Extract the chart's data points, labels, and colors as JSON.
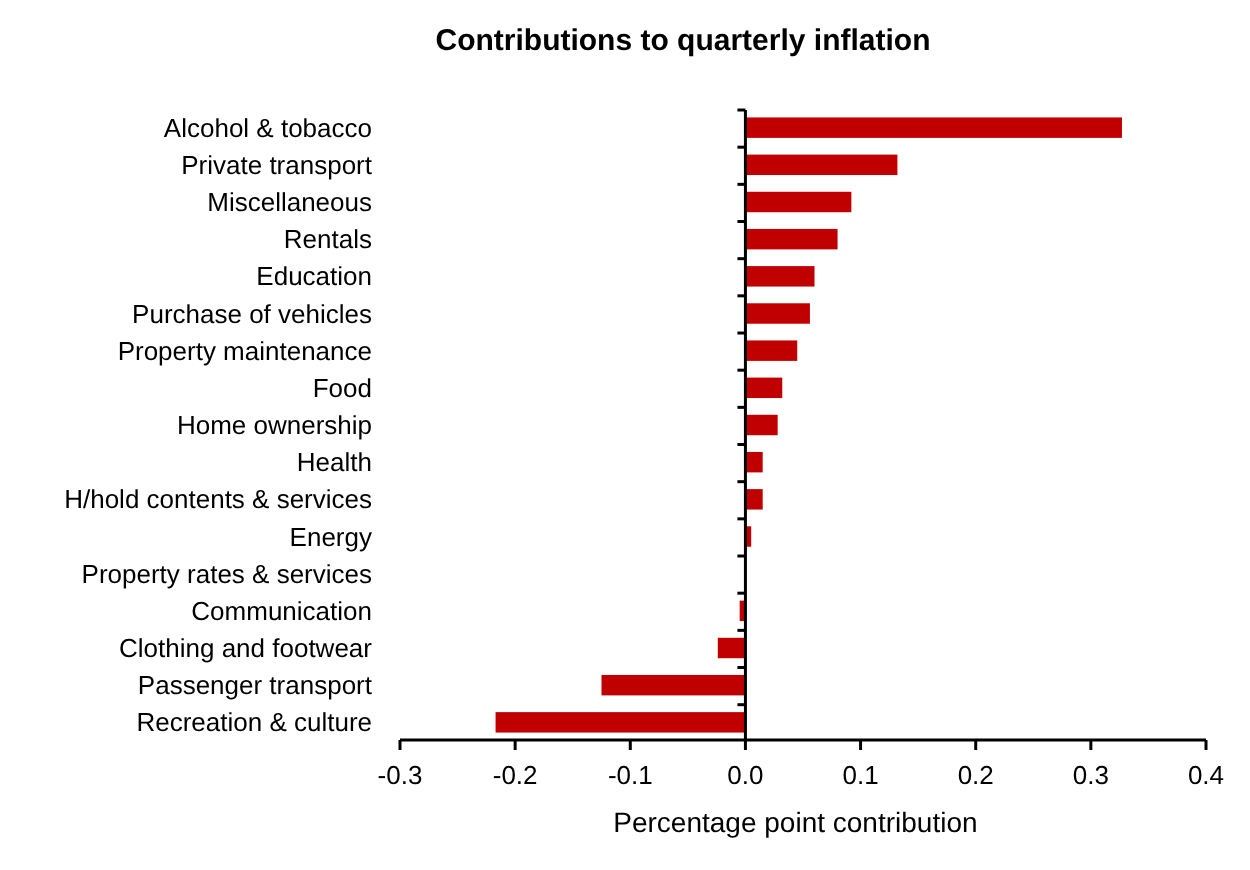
{
  "chart_data": {
    "type": "bar",
    "orientation": "horizontal",
    "title": "Contributions to quarterly inflation",
    "xlabel": "Percentage point contribution",
    "categories": [
      "Alcohol & tobacco",
      "Private transport",
      "Miscellaneous",
      "Rentals",
      "Education",
      "Purchase of vehicles",
      "Property maintenance",
      "Food",
      "Home ownership",
      "Health",
      "H/hold contents & services",
      "Energy",
      "Property rates & services",
      "Communication",
      "Clothing and footwear",
      "Passenger transport",
      "Recreation & culture"
    ],
    "values": [
      0.327,
      0.132,
      0.092,
      0.08,
      0.06,
      0.056,
      0.045,
      0.032,
      0.028,
      0.015,
      0.015,
      0.005,
      0,
      -0.005,
      -0.024,
      -0.125,
      -0.217
    ],
    "color": "#c00000",
    "xlim": [
      -0.3,
      0.4
    ],
    "xticks": [
      -0.3,
      -0.2,
      -0.1,
      {
        "value": 0,
        "label": "0.0"
      },
      0.1,
      0.2,
      0.3,
      0.4
    ]
  }
}
